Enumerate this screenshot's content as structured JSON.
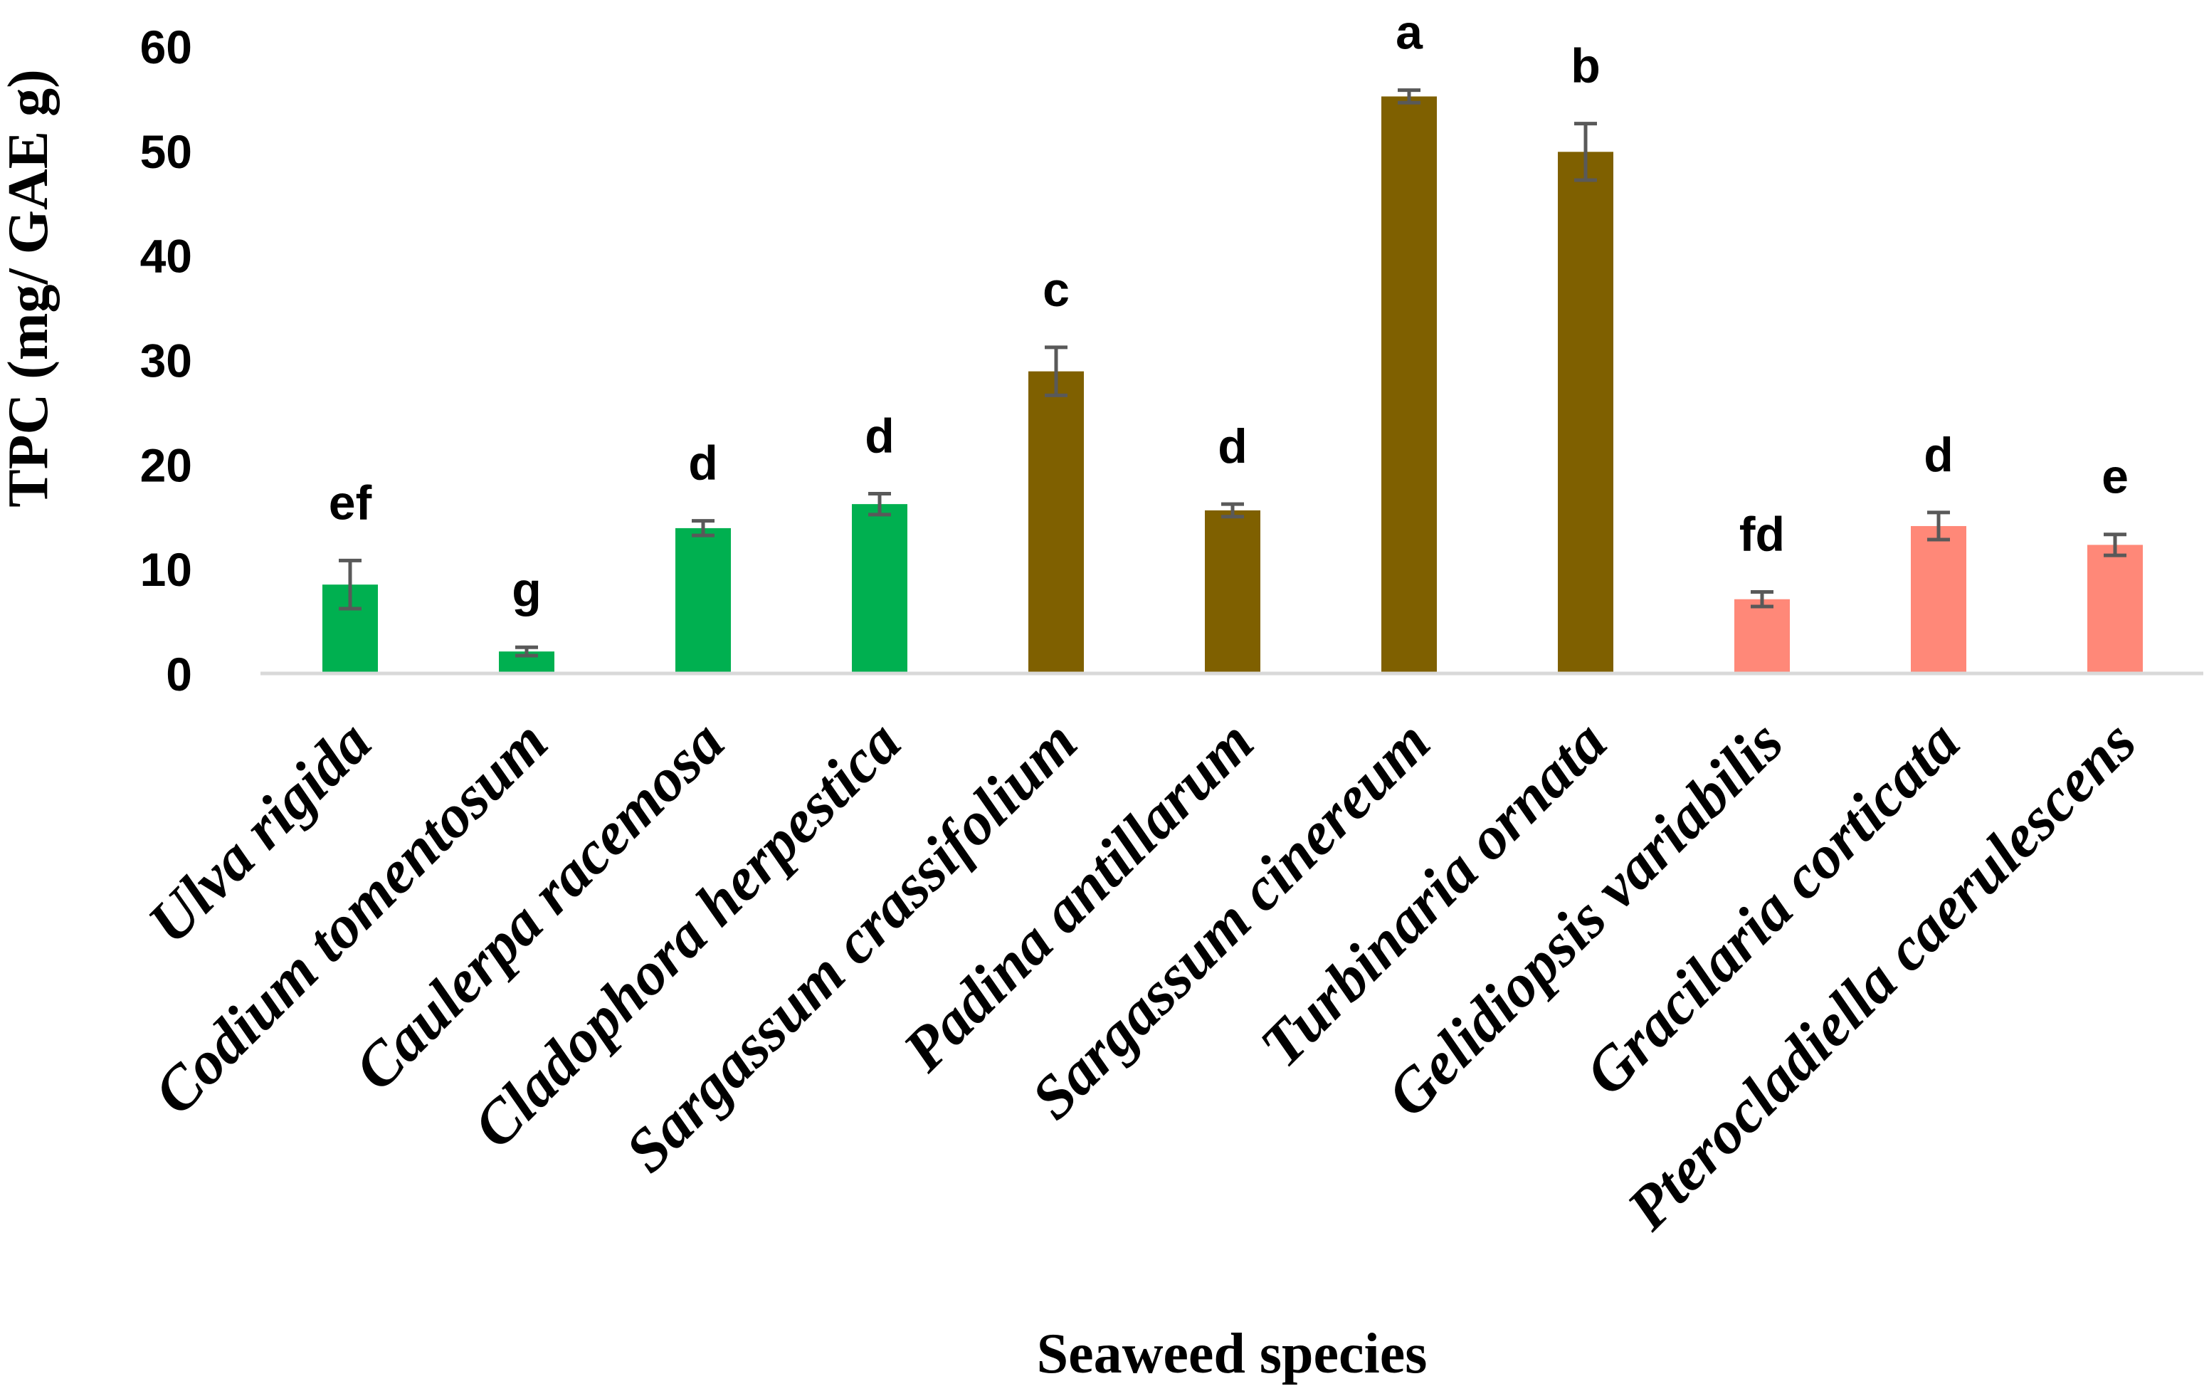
{
  "chart_data": {
    "type": "bar",
    "title": "",
    "xlabel": "Seaweed species",
    "ylabel": "TPC (mg/ GAE g)",
    "ylim": [
      0,
      60
    ],
    "yticks": [
      "0",
      "10",
      "20",
      "30",
      "40",
      "50",
      "60"
    ],
    "grid": false,
    "legend": "none",
    "categories": [
      "Ulva rigida",
      "Codium tomentosum",
      "Caulerpa racemosa",
      "Cladophora herpestica",
      "Sargassum crassifolium",
      "Padina antillarum",
      "Sargassum cinereum",
      "Turbinaria ornata",
      "Gelidiopsis variabilis",
      "Gracilaria corticata",
      "Pterocladiella caerulescens"
    ],
    "values": [
      8.5,
      2.1,
      13.9,
      16.2,
      28.9,
      15.6,
      55.2,
      49.9,
      7.1,
      14.1,
      12.3
    ],
    "errors": [
      2.3,
      0.4,
      0.7,
      1.0,
      2.3,
      0.6,
      0.6,
      2.7,
      0.7,
      1.3,
      1.0
    ],
    "significance_letters": [
      "ef",
      "g",
      "d",
      "d",
      "c",
      "d",
      "a",
      "b",
      "fd",
      "d",
      "e"
    ],
    "bar_colors": [
      "#00b050",
      "#00b050",
      "#00b050",
      "#00b050",
      "#7f6000",
      "#7f6000",
      "#7f6000",
      "#7f6000",
      "#ff8878",
      "#ff8878",
      "#ff8878"
    ],
    "errorbar_color": "#595959",
    "axis_line_color": "#d9d9d9"
  }
}
